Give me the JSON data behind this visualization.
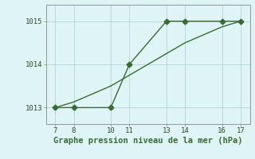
{
  "line1_x": [
    7,
    8,
    10,
    11,
    13,
    14,
    16,
    17
  ],
  "line1_y": [
    1013.0,
    1013.0,
    1013.0,
    1014.0,
    1015.0,
    1015.0,
    1015.0,
    1015.0
  ],
  "line2_x": [
    7,
    8,
    10,
    11,
    13,
    14,
    16,
    17
  ],
  "line2_y": [
    1013.0,
    1013.13,
    1013.5,
    1013.75,
    1014.25,
    1014.5,
    1014.87,
    1015.0
  ],
  "line_color": "#3a6b35",
  "marker": "D",
  "markersize": 3.5,
  "linewidth": 1.0,
  "xlim": [
    6.5,
    17.5
  ],
  "ylim": [
    1012.62,
    1015.38
  ],
  "xticks": [
    7,
    8,
    10,
    11,
    13,
    14,
    16,
    17
  ],
  "yticks": [
    1013,
    1014,
    1015
  ],
  "xlabel": "Graphe pression niveau de la mer (hPa)",
  "xlabel_fontsize": 7.5,
  "xlabel_fontweight": "bold",
  "tick_fontsize": 6.5,
  "background_color": "#dff4f4",
  "grid_color": "#b8d8d8",
  "spine_color": "#888888"
}
